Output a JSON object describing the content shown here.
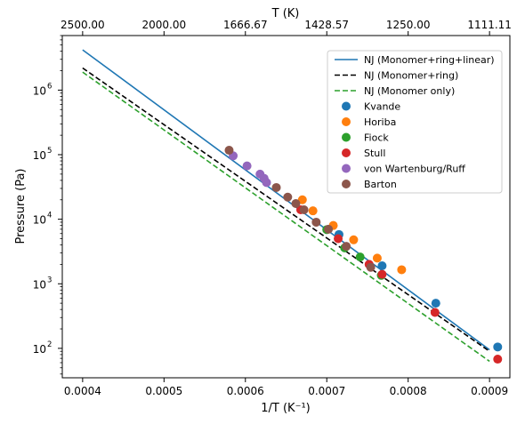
{
  "chart_data": {
    "type": "scatter",
    "xlabel": "1/T (K⁻¹)",
    "ylabel": "Pressure (Pa)",
    "top_xlabel": "T (K)",
    "x_scale": "linear",
    "y_scale": "log",
    "xlim": [
      0.000375,
      0.000925
    ],
    "ylim": [
      35,
      7000000
    ],
    "x_ticks": [
      0.0004,
      0.0005,
      0.0006,
      0.0007,
      0.0008,
      0.0009
    ],
    "x_tick_labels": [
      "0.0004",
      "0.0005",
      "0.0006",
      "0.0007",
      "0.0008",
      "0.0009"
    ],
    "top_ticks": [
      0.0004,
      0.0005,
      0.0006,
      0.0007,
      0.0008,
      0.0009
    ],
    "top_tick_labels": [
      "2500.00",
      "2000.00",
      "1666.67",
      "1428.57",
      "1250.00",
      "1111.11"
    ],
    "y_ticks": [
      100,
      1000,
      10000,
      100000,
      1000000
    ],
    "y_tick_base": "10",
    "y_tick_exponents": [
      "2",
      "3",
      "4",
      "5",
      "6"
    ],
    "grid": false,
    "legend_position": "top-right",
    "lines": [
      {
        "name": "NJ (Monomer+ring+linear)",
        "color": "#1f77b4",
        "dash": "solid",
        "x": [
          0.0004,
          0.0009
        ],
        "y": [
          4200000,
          95
        ]
      },
      {
        "name": "NJ (Monomer+ring)",
        "color": "#000000",
        "dash": "dashed",
        "x": [
          0.0004,
          0.0009
        ],
        "y": [
          2200000,
          90
        ]
      },
      {
        "name": "NJ (Monomer only)",
        "color": "#2ca02c",
        "dash": "dashed",
        "x": [
          0.0004,
          0.0009
        ],
        "y": [
          1900000,
          63
        ]
      }
    ],
    "series": [
      {
        "name": "Kvande",
        "color": "#1f77b4",
        "x": [
          0.000715,
          0.000768,
          0.000834,
          0.00091
        ],
        "y": [
          5800,
          1900,
          500,
          105
        ]
      },
      {
        "name": "Horiba",
        "color": "#ff7f0e",
        "x": [
          0.00067,
          0.000683,
          0.000708,
          0.000733,
          0.000762,
          0.000792
        ],
        "y": [
          20000,
          13500,
          8000,
          4800,
          2500,
          1650
        ]
      },
      {
        "name": "Fiock",
        "color": "#2ca02c",
        "x": [
          0.0007,
          0.000722,
          0.000741,
          0.000767
        ],
        "y": [
          6900,
          3600,
          2600,
          1350
        ]
      },
      {
        "name": "Stull",
        "color": "#d62728",
        "x": [
          0.000668,
          0.000714,
          0.000752,
          0.000768,
          0.000833,
          0.00091
        ],
        "y": [
          14000,
          5000,
          2000,
          1400,
          360,
          68
        ]
      },
      {
        "name": "von Wartenburg/Ruff",
        "color": "#9467bd",
        "x": [
          0.000585,
          0.000602,
          0.000618,
          0.000623,
          0.000626
        ],
        "y": [
          96000,
          67000,
          50000,
          43000,
          37000
        ]
      },
      {
        "name": "Barton",
        "color": "#8c564b",
        "x": [
          0.00058,
          0.000638,
          0.000652,
          0.000662,
          0.000672,
          0.000687,
          0.000702,
          0.000724,
          0.000754
        ],
        "y": [
          117000,
          31000,
          22000,
          17500,
          14000,
          9000,
          7000,
          3800,
          1800
        ]
      }
    ]
  }
}
